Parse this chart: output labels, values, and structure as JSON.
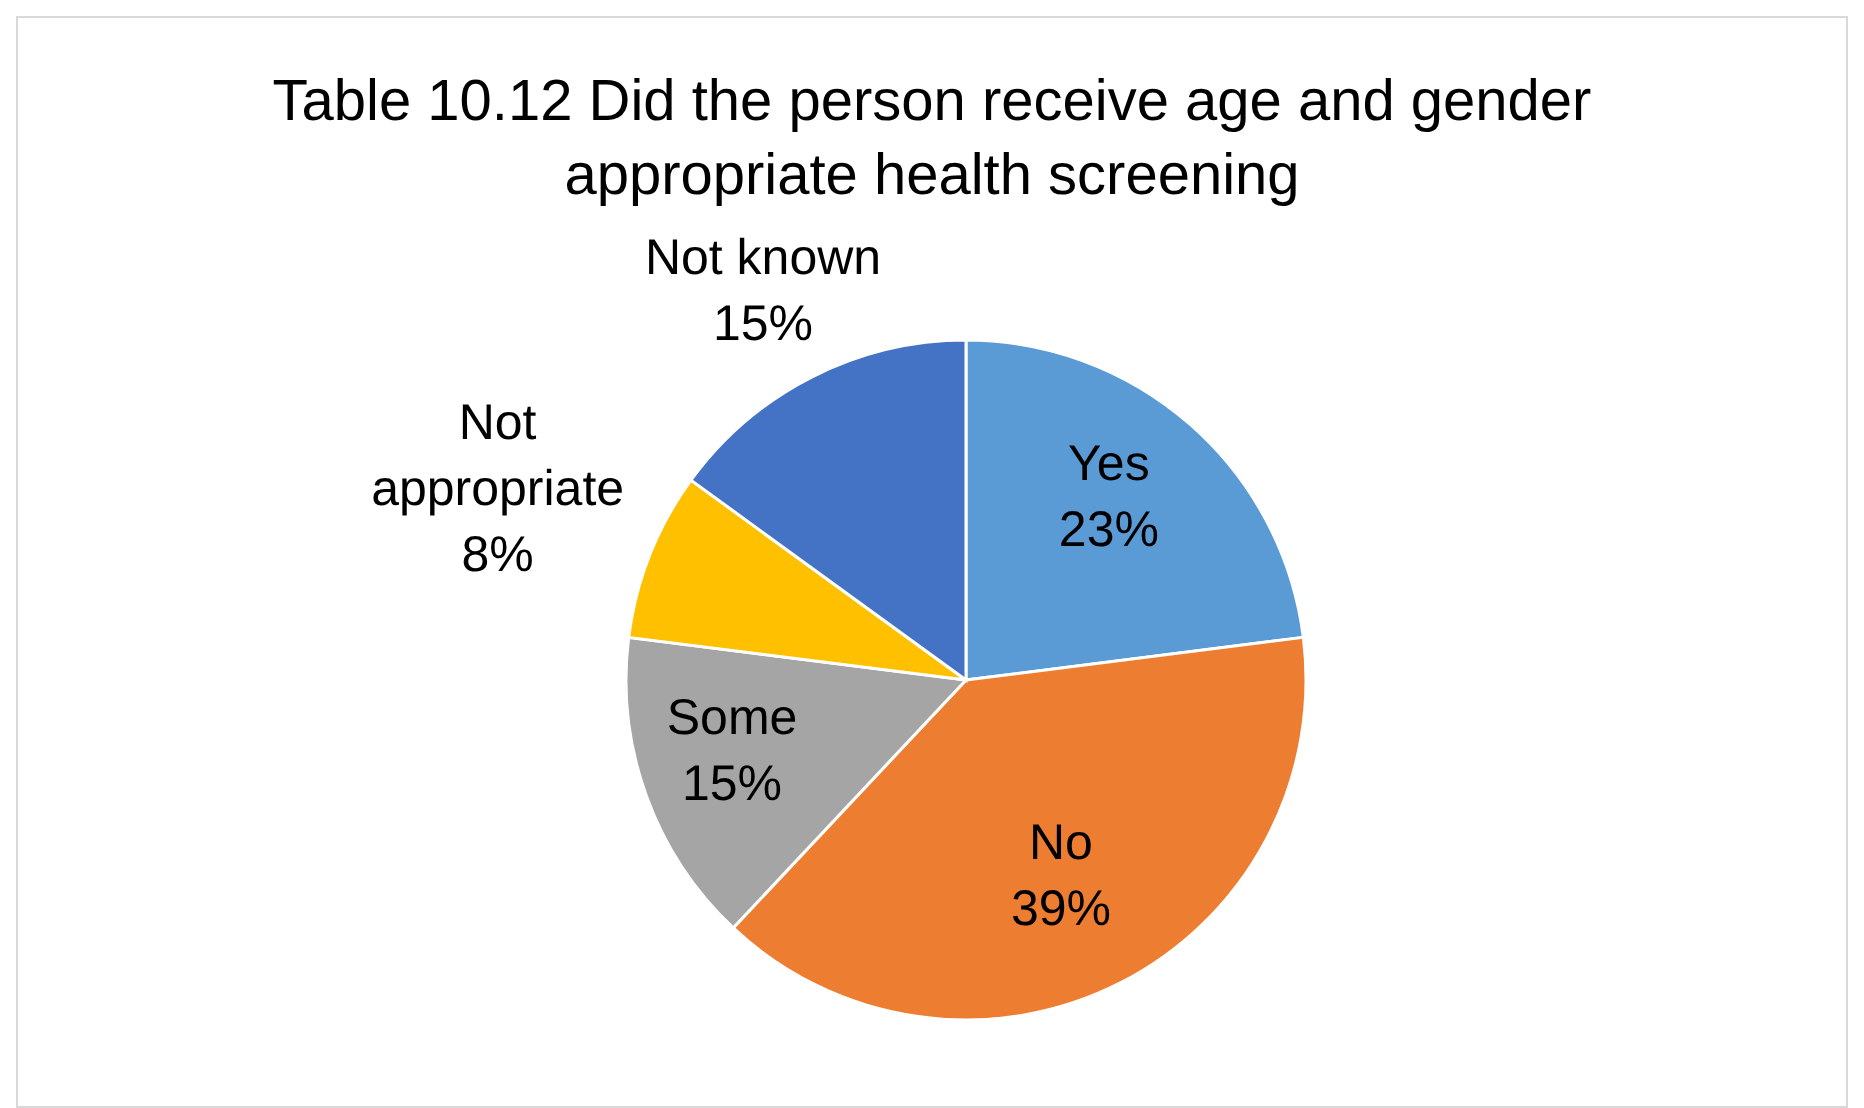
{
  "chart_data": {
    "type": "pie",
    "title": "Table 10.12 Did the person receive age and gender appropriate health screening",
    "categories": [
      "Yes",
      "No",
      "Some",
      "Not appropriate",
      "Not known"
    ],
    "values": [
      23,
      39,
      15,
      8,
      15
    ],
    "value_labels": [
      "23%",
      "39%",
      "15%",
      "8%",
      "15%"
    ],
    "colors": [
      "#5b9bd5",
      "#ed7d31",
      "#a5a5a5",
      "#ffc000",
      "#4472c4"
    ],
    "legend": false
  }
}
